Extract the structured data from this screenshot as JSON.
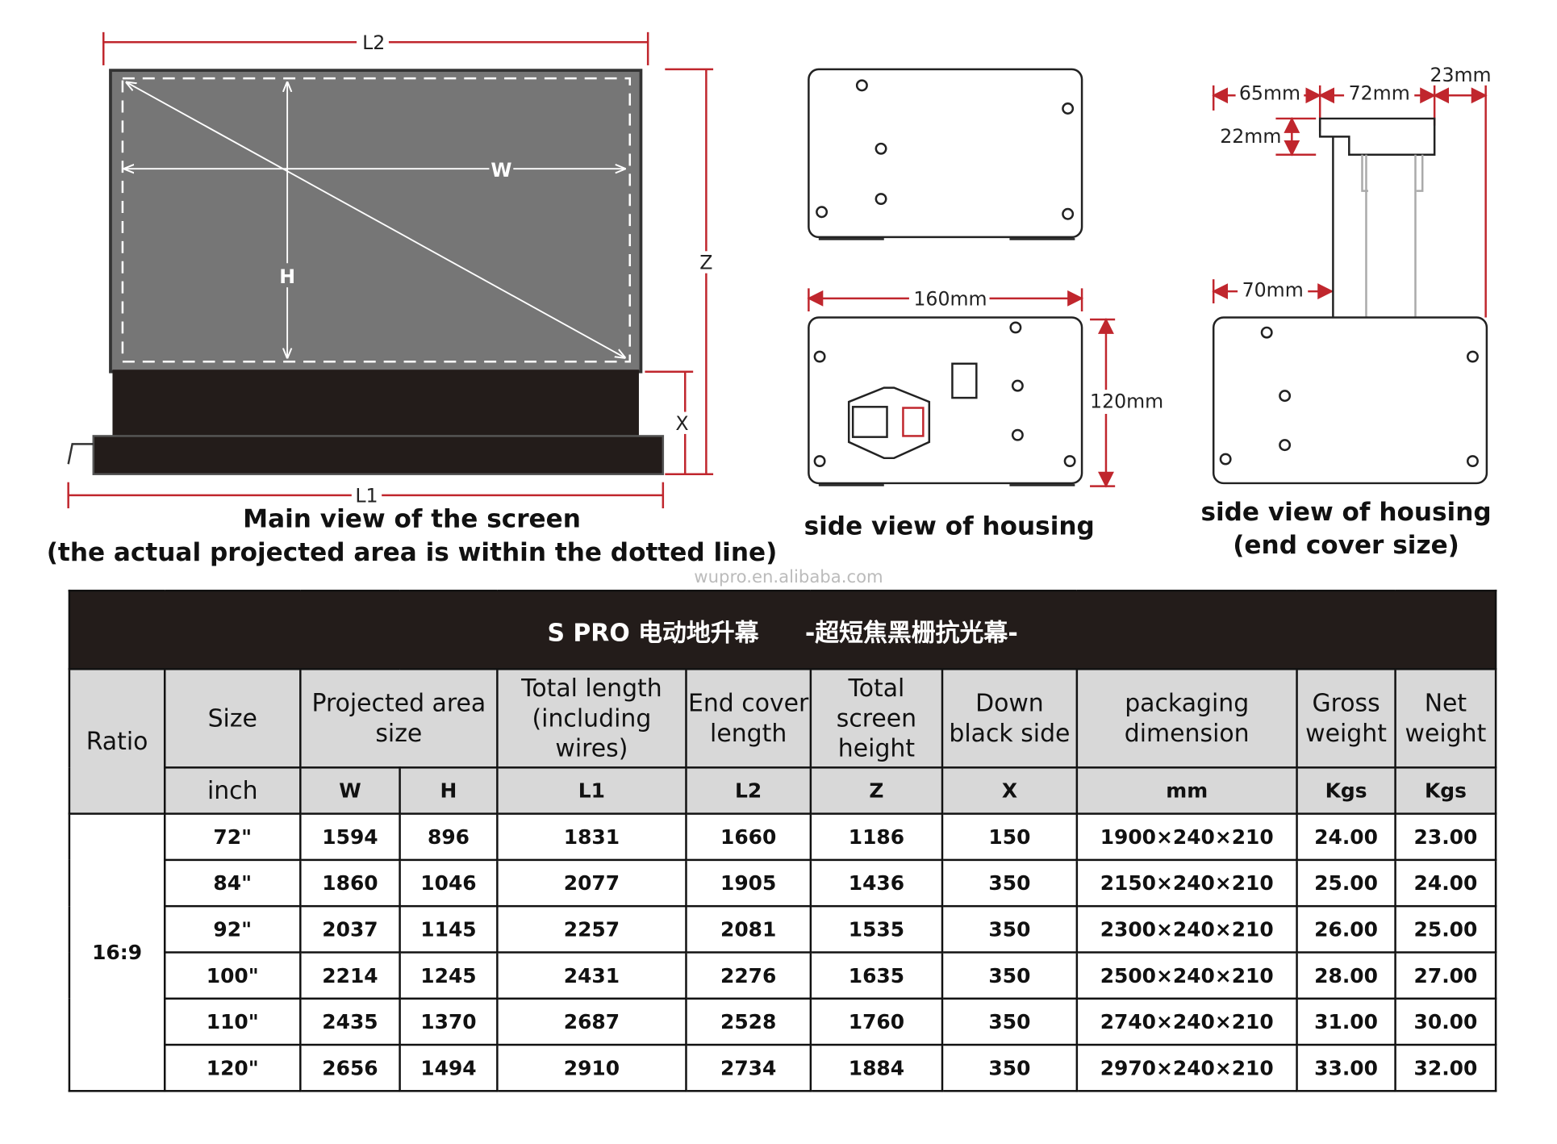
{
  "diagram": {
    "main_view": {
      "labels": {
        "l2": "L2",
        "w": "W",
        "h": "H",
        "z": "Z",
        "x": "X",
        "l1": "L1"
      },
      "caption_line1": "Main view of the screen",
      "caption_line2": "(the actual projected area is within the dotted line)"
    },
    "side_view": {
      "width_label": "160mm",
      "height_label": "120mm",
      "caption": "side view of housing"
    },
    "end_cover": {
      "labels": {
        "a": "65mm",
        "b": "72mm",
        "c": "23mm",
        "d": "22mm",
        "e": "70mm"
      },
      "caption_line1": "side view of housing",
      "caption_line2": "(end cover size)"
    },
    "colors": {
      "dimension_line": "#c0262d",
      "screen": "#767676",
      "housing": "#231c1a"
    }
  },
  "watermark": "wupro.en.alibaba.com",
  "table": {
    "title_left": "S PRO 电动地升幕",
    "title_right": "-超短焦黑栅抗光幕-",
    "headers": {
      "ratio": "Ratio",
      "size": "Size",
      "projected": "Projected area size",
      "total_length": "Total length (including wires)",
      "end_cover": "End cover length",
      "total_height": "Total screen height",
      "down_black": "Down black side",
      "packaging": "packaging dimension",
      "gross": "Gross weight",
      "net": "Net weight"
    },
    "units": {
      "size": "inch",
      "w": "W",
      "h": "H",
      "l1": "L1",
      "l2": "L2",
      "z": "Z",
      "x": "X",
      "packaging": "mm",
      "gross": "Kgs",
      "net": "Kgs"
    },
    "ratio": "16:9",
    "rows": [
      [
        "72\"",
        "1594",
        "896",
        "1831",
        "1660",
        "1186",
        "150",
        "1900×240×210",
        "24.00",
        "23.00"
      ],
      [
        "84\"",
        "1860",
        "1046",
        "2077",
        "1905",
        "1436",
        "350",
        "2150×240×210",
        "25.00",
        "24.00"
      ],
      [
        "92\"",
        "2037",
        "1145",
        "2257",
        "2081",
        "1535",
        "350",
        "2300×240×210",
        "26.00",
        "25.00"
      ],
      [
        "100\"",
        "2214",
        "1245",
        "2431",
        "2276",
        "1635",
        "350",
        "2500×240×210",
        "28.00",
        "27.00"
      ],
      [
        "110\"",
        "2435",
        "1370",
        "2687",
        "2528",
        "1760",
        "350",
        "2740×240×210",
        "31.00",
        "30.00"
      ],
      [
        "120\"",
        "2656",
        "1494",
        "2910",
        "2734",
        "1884",
        "350",
        "2970×240×210",
        "33.00",
        "32.00"
      ]
    ]
  }
}
